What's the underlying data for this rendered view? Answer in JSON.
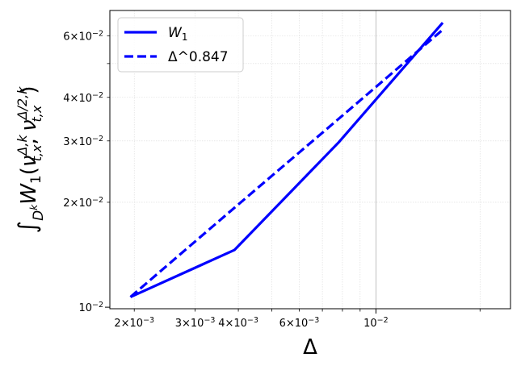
{
  "chart_data": {
    "type": "line",
    "title": "",
    "xscale": "log",
    "yscale": "log",
    "xlim": [
      0.0017,
      0.0245
    ],
    "ylim": [
      0.0099,
      0.071
    ],
    "xlabel": "Δ",
    "ylabel_parts": {
      "integral": "∫",
      "domain": "D",
      "domain_sup": "k",
      "W": "W",
      "W_sub": "1",
      "open": "(",
      "nu1": "ν",
      "nu1_sup": "Δ,k",
      "nu1_sub": "t,x",
      "comma": ",",
      "nu2": "ν",
      "nu2_sup": "Δ/2,k",
      "nu2_sub": "t,x",
      "close": ")"
    },
    "grid": true,
    "legend_position": "top-left",
    "series": [
      {
        "name_base": "W",
        "name_sub": "1",
        "style": "solid",
        "color": "#0000ff",
        "x": [
          0.00195,
          0.0039,
          0.0078,
          0.0156
        ],
        "y": [
          0.0107,
          0.0146,
          0.0297,
          0.0655
        ]
      },
      {
        "name": "Δ^0.847",
        "style": "dashed",
        "color": "#0000ff",
        "x": [
          0.00195,
          0.0039,
          0.0078,
          0.0156
        ],
        "y": [
          0.0107,
          0.0193,
          0.0347,
          0.0625
        ]
      }
    ],
    "x_ticks_major": [
      {
        "value": 0.01,
        "base": "10",
        "exp": "−2"
      }
    ],
    "x_ticks_minor_labeled": [
      {
        "value": 0.002,
        "mant": "2",
        "base": "10",
        "exp": "−3"
      },
      {
        "value": 0.003,
        "mant": "3",
        "base": "10",
        "exp": "−3"
      },
      {
        "value": 0.004,
        "mant": "4",
        "base": "10",
        "exp": "−3"
      },
      {
        "value": 0.006,
        "mant": "6",
        "base": "10",
        "exp": "−3"
      }
    ],
    "x_ticks_minor_unlabeled": [
      0.005,
      0.007,
      0.008,
      0.009,
      0.02
    ],
    "y_ticks_major": [
      {
        "value": 0.01,
        "base": "10",
        "exp": "−2"
      }
    ],
    "y_ticks_minor_labeled": [
      {
        "value": 0.02,
        "mant": "2",
        "base": "10",
        "exp": "−2"
      },
      {
        "value": 0.03,
        "mant": "3",
        "base": "10",
        "exp": "−2"
      },
      {
        "value": 0.04,
        "mant": "4",
        "base": "10",
        "exp": "−2"
      },
      {
        "value": 0.06,
        "mant": "6",
        "base": "10",
        "exp": "−2"
      }
    ],
    "y_ticks_minor_unlabeled": [
      0.05
    ]
  }
}
